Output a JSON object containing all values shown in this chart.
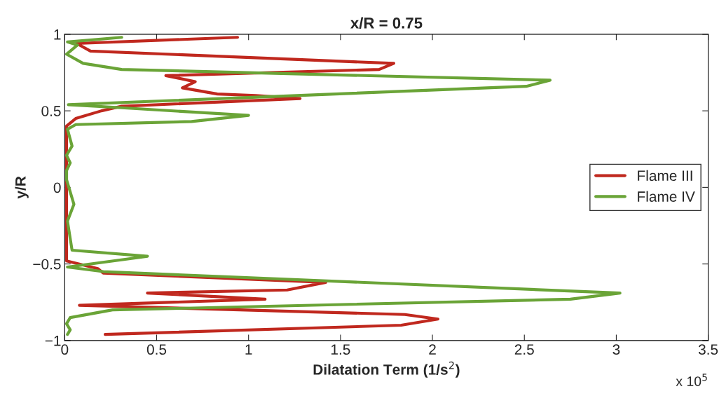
{
  "chart_data": {
    "type": "line",
    "title": "x/R = 0.75",
    "xlabel": "Dilatation Term (1/s$^{2}$)",
    "ylabel": "y/R",
    "annotations": [
      "x 10$^{5}$"
    ],
    "series": [
      {
        "name": "Flame III",
        "color": "#c0281e",
        "x": [
          0.94,
          0.065,
          0.14,
          1.79,
          1.71,
          0.55,
          0.71,
          0.64,
          0.83,
          1.04,
          1.28,
          0.31,
          0.2,
          0.06,
          0.01,
          0.01,
          0.18,
          0.21,
          1.42,
          1.21,
          0.45,
          1.09,
          0.08,
          1.85,
          2.03,
          1.83,
          0.22
        ],
        "values": [
          0.98,
          0.94,
          0.89,
          0.81,
          0.77,
          0.73,
          0.69,
          0.65,
          0.61,
          0.6,
          0.58,
          0.53,
          0.5,
          0.45,
          0.4,
          -0.48,
          -0.53,
          -0.56,
          -0.62,
          -0.67,
          -0.69,
          -0.73,
          -0.77,
          -0.83,
          -0.86,
          -0.9,
          -0.96
        ]
      },
      {
        "name": "Flame IV",
        "color": "#6aa437",
        "x": [
          0.31,
          0.015,
          0.07,
          0.01,
          0.1,
          0.31,
          2.64,
          2.51,
          0.02,
          0.31,
          1.0,
          0.69,
          0.06,
          0.015,
          0.04,
          0.01,
          0.03,
          0.01,
          0.01,
          0.05,
          0.015,
          0.04,
          0.45,
          0.015,
          0.21,
          3.02,
          2.75,
          0.26,
          0.03,
          0.01,
          0.03,
          0.015
        ],
        "values": [
          0.98,
          0.95,
          0.93,
          0.87,
          0.81,
          0.77,
          0.7,
          0.66,
          0.54,
          0.52,
          0.47,
          0.43,
          0.41,
          0.38,
          0.27,
          0.21,
          0.16,
          0.11,
          0.05,
          -0.11,
          -0.22,
          -0.41,
          -0.45,
          -0.52,
          -0.55,
          -0.69,
          -0.73,
          -0.8,
          -0.85,
          -0.89,
          -0.93,
          -0.96
        ]
      }
    ],
    "xlim": [
      0,
      3.5
    ],
    "xticks": [
      0,
      0.5,
      1,
      1.5,
      2,
      2.5,
      3,
      3.5
    ],
    "ylim": [
      -1,
      1
    ],
    "yticks": [
      -1,
      -0.5,
      0,
      0.5,
      1
    ],
    "grid": false,
    "legend": "right",
    "marker": "none",
    "line_style": "solid"
  }
}
